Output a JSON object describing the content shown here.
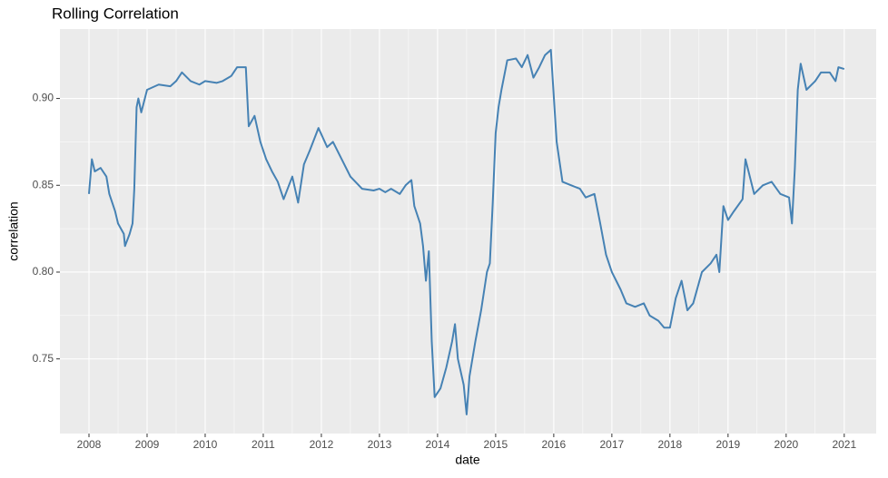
{
  "chart_data": {
    "type": "line",
    "title": "Rolling Correlation",
    "x_label": "date",
    "y_label": "correlation",
    "color": "#4682b4",
    "grid": true,
    "xlim": [
      2007.5,
      2021.55
    ],
    "ylim": [
      0.707,
      0.94
    ],
    "xticks": [
      2008,
      2009,
      2010,
      2011,
      2012,
      2013,
      2014,
      2015,
      2016,
      2017,
      2018,
      2019,
      2020,
      2021
    ],
    "yticks": [
      0.75,
      {
        "value": 0.8,
        "label": "0.80"
      },
      0.85,
      {
        "value": 0.9,
        "label": "0.90"
      }
    ],
    "x": [
      2008.0,
      2008.05,
      2008.1,
      2008.2,
      2008.3,
      2008.35,
      2008.45,
      2008.5,
      2008.6,
      2008.62,
      2008.7,
      2008.75,
      2008.78,
      2008.82,
      2008.85,
      2008.9,
      2009.0,
      2009.2,
      2009.4,
      2009.5,
      2009.6,
      2009.75,
      2009.9,
      2010.0,
      2010.2,
      2010.3,
      2010.45,
      2010.55,
      2010.7,
      2010.75,
      2010.85,
      2010.95,
      2011.05,
      2011.15,
      2011.25,
      2011.35,
      2011.5,
      2011.6,
      2011.7,
      2011.8,
      2011.95,
      2012.1,
      2012.2,
      2012.35,
      2012.5,
      2012.7,
      2012.9,
      2013.0,
      2013.1,
      2013.2,
      2013.35,
      2013.45,
      2013.55,
      2013.6,
      2013.7,
      2013.75,
      2013.8,
      2013.85,
      2013.9,
      2013.95,
      2014.05,
      2014.15,
      2014.25,
      2014.3,
      2014.35,
      2014.45,
      2014.5,
      2014.55,
      2014.65,
      2014.75,
      2014.85,
      2014.9,
      2014.95,
      2015.0,
      2015.05,
      2015.1,
      2015.2,
      2015.35,
      2015.45,
      2015.55,
      2015.65,
      2015.75,
      2015.85,
      2015.95,
      2016.05,
      2016.15,
      2016.3,
      2016.45,
      2016.55,
      2016.7,
      2016.8,
      2016.9,
      2017.0,
      2017.15,
      2017.25,
      2017.4,
      2017.55,
      2017.65,
      2017.8,
      2017.9,
      2018.0,
      2018.1,
      2018.2,
      2018.3,
      2018.4,
      2018.55,
      2018.7,
      2018.8,
      2018.85,
      2018.92,
      2019.0,
      2019.1,
      2019.25,
      2019.3,
      2019.45,
      2019.6,
      2019.75,
      2019.9,
      2020.05,
      2020.1,
      2020.15,
      2020.2,
      2020.25,
      2020.35,
      2020.5,
      2020.6,
      2020.75,
      2020.85,
      2020.9,
      2021.0
    ],
    "values": [
      0.845,
      0.865,
      0.858,
      0.86,
      0.855,
      0.845,
      0.835,
      0.828,
      0.822,
      0.815,
      0.822,
      0.828,
      0.848,
      0.895,
      0.9,
      0.892,
      0.905,
      0.908,
      0.907,
      0.91,
      0.915,
      0.91,
      0.908,
      0.91,
      0.909,
      0.91,
      0.913,
      0.918,
      0.918,
      0.884,
      0.89,
      0.875,
      0.865,
      0.858,
      0.852,
      0.842,
      0.855,
      0.84,
      0.862,
      0.87,
      0.883,
      0.872,
      0.875,
      0.865,
      0.855,
      0.848,
      0.847,
      0.848,
      0.846,
      0.848,
      0.845,
      0.85,
      0.853,
      0.838,
      0.828,
      0.815,
      0.795,
      0.812,
      0.76,
      0.728,
      0.733,
      0.745,
      0.76,
      0.77,
      0.75,
      0.735,
      0.718,
      0.74,
      0.76,
      0.778,
      0.8,
      0.805,
      0.84,
      0.88,
      0.895,
      0.905,
      0.922,
      0.923,
      0.918,
      0.925,
      0.912,
      0.918,
      0.925,
      0.928,
      0.875,
      0.852,
      0.85,
      0.848,
      0.843,
      0.845,
      0.828,
      0.81,
      0.8,
      0.79,
      0.782,
      0.78,
      0.782,
      0.775,
      0.772,
      0.768,
      0.768,
      0.785,
      0.795,
      0.778,
      0.782,
      0.8,
      0.805,
      0.81,
      0.8,
      0.838,
      0.83,
      0.835,
      0.842,
      0.865,
      0.845,
      0.85,
      0.852,
      0.845,
      0.843,
      0.828,
      0.86,
      0.905,
      0.92,
      0.905,
      0.91,
      0.915,
      0.915,
      0.91,
      0.918,
      0.917
    ]
  }
}
